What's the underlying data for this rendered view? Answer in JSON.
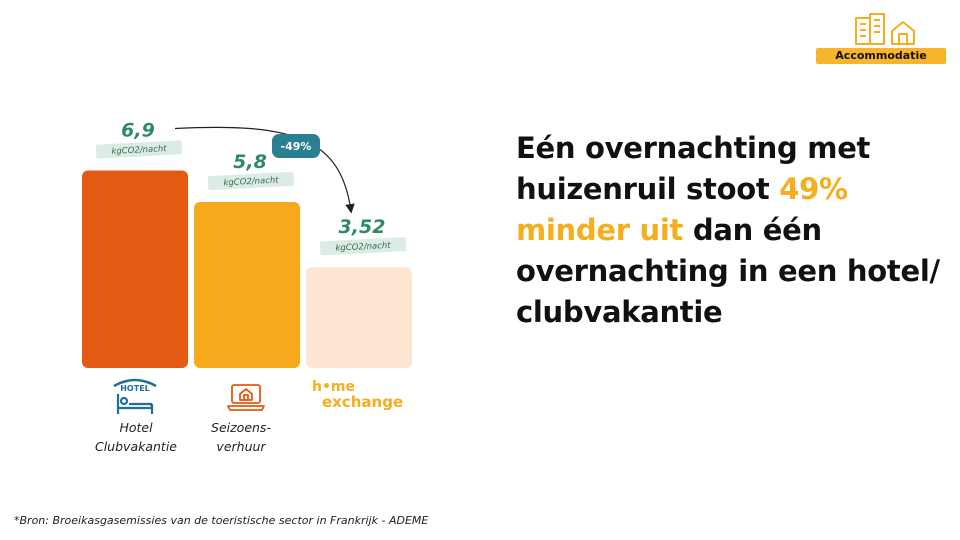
{
  "badge": {
    "label": "Accommodatie",
    "icon": "buildings-house-icon",
    "color": "#f6b52b"
  },
  "chart_data": {
    "type": "bar",
    "categories": [
      "Hotel Clubvakantie",
      "Seizoens-verhuur",
      "home exchange"
    ],
    "values": [
      6.9,
      5.8,
      3.52
    ],
    "value_labels": [
      "6,9",
      "5,8",
      "3,52"
    ],
    "unit": "kgCO2/nacht",
    "colors": [
      "#e55a12",
      "#f6aa1c",
      "#fde6d2"
    ],
    "ylim": [
      0,
      8
    ],
    "annotation": {
      "text": "-49%",
      "from": 0,
      "to": 2,
      "color": "#2a7f91"
    },
    "grid": false,
    "legend": "none"
  },
  "categories": {
    "hotel": {
      "icon_text": "HOTEL",
      "label": "Hotel\nClubvakantie",
      "icon": "hotel-bed-icon"
    },
    "seasonal": {
      "label": "Seizoens-\nverhuur",
      "icon": "laptop-house-icon"
    },
    "homeexchange": {
      "logo_line1": "h•me",
      "logo_line2": "exchange"
    }
  },
  "headline": {
    "part1": "Eén overnachting met huizenruil stoot ",
    "highlight": "49% minder uit",
    "part2": " dan één overnachting in een hotel/ clubvakantie",
    "highlight_color": "#f4ae1e"
  },
  "source": "*Bron: Broeikasgasemissies van de toeristische sector in Frankrijk - ADEME"
}
